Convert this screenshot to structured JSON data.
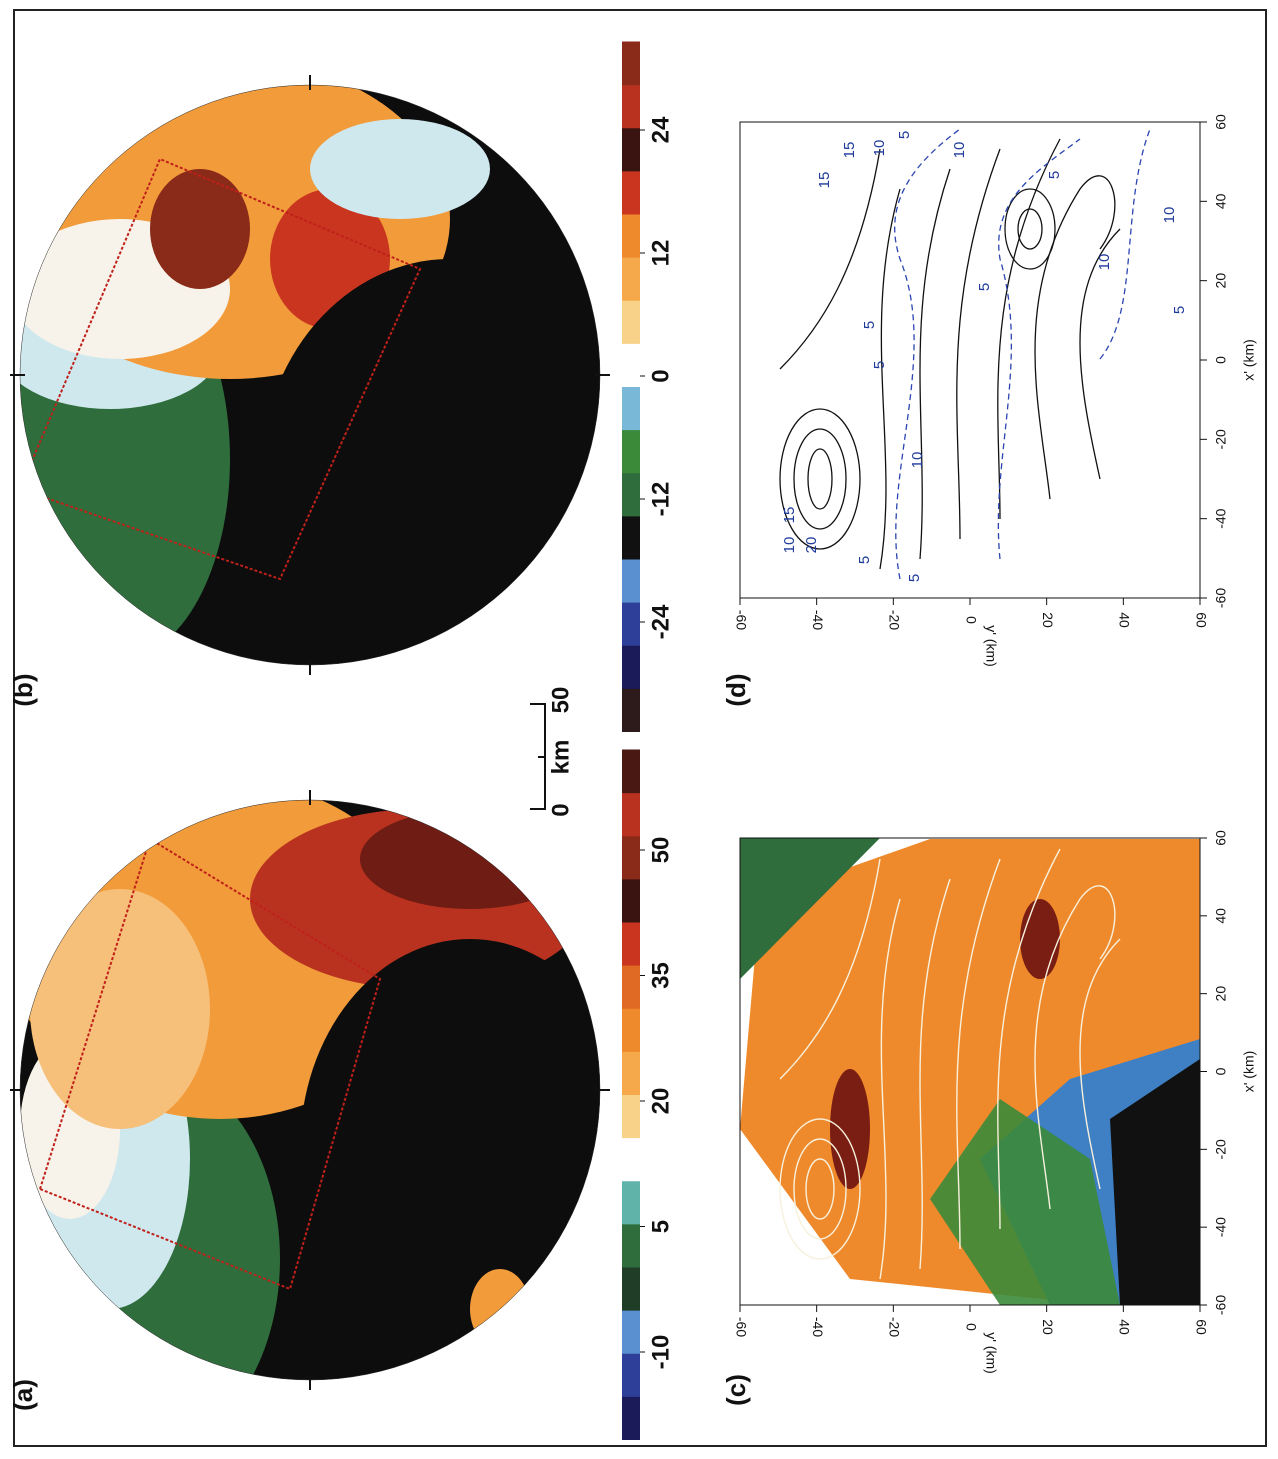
{
  "panels": {
    "a": {
      "label": "(a)"
    },
    "b": {
      "label": "(b)"
    },
    "c": {
      "label": "(c)",
      "x_label": "x' (km)",
      "y_label": "y' (km)",
      "xticks": [
        -60,
        -40,
        -20,
        0,
        20,
        40,
        60
      ],
      "yticks": [
        -60,
        -40,
        -20,
        0,
        20,
        40,
        60
      ]
    },
    "d": {
      "label": "(d)",
      "x_label": "x' (km)",
      "y_label": "y' (km)",
      "xticks": [
        -60,
        -40,
        -20,
        0,
        20,
        40,
        60
      ],
      "yticks": [
        -60,
        -40,
        -20,
        0,
        20,
        40,
        60
      ],
      "contour_labels": [
        15,
        15,
        10,
        5,
        10,
        5,
        10,
        10,
        5,
        5,
        5,
        5,
        10,
        15,
        10,
        20,
        5,
        5
      ]
    }
  },
  "colorbar_a": {
    "ticks": [
      -10,
      5,
      20,
      35,
      50
    ]
  },
  "colorbar_b": {
    "ticks": [
      -24,
      -12,
      0,
      12,
      24
    ]
  },
  "scale_bar": {
    "start": 0,
    "unit": "km",
    "end": 50
  }
}
